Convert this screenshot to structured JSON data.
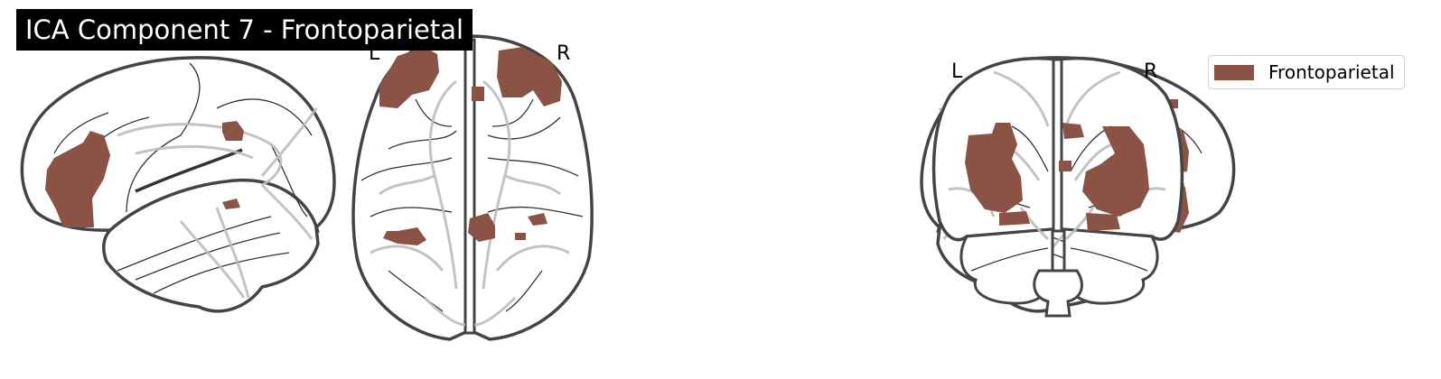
{
  "title": "ICA Component 7 - Frontoparietal",
  "network": {
    "name": "Frontoparietal",
    "color": "#8b5346"
  },
  "views": [
    {
      "name": "sagittal-left",
      "labels": []
    },
    {
      "name": "axial",
      "labels": [
        "L",
        "R"
      ]
    },
    {
      "name": "sagittal-right",
      "labels": []
    },
    {
      "name": "coronal",
      "labels": [
        "L",
        "R"
      ]
    }
  ],
  "colors": {
    "outline": "#444444",
    "sulcus": "#333333",
    "ghost": "#bdbdbd"
  },
  "legend": {
    "label": "Frontoparietal"
  }
}
